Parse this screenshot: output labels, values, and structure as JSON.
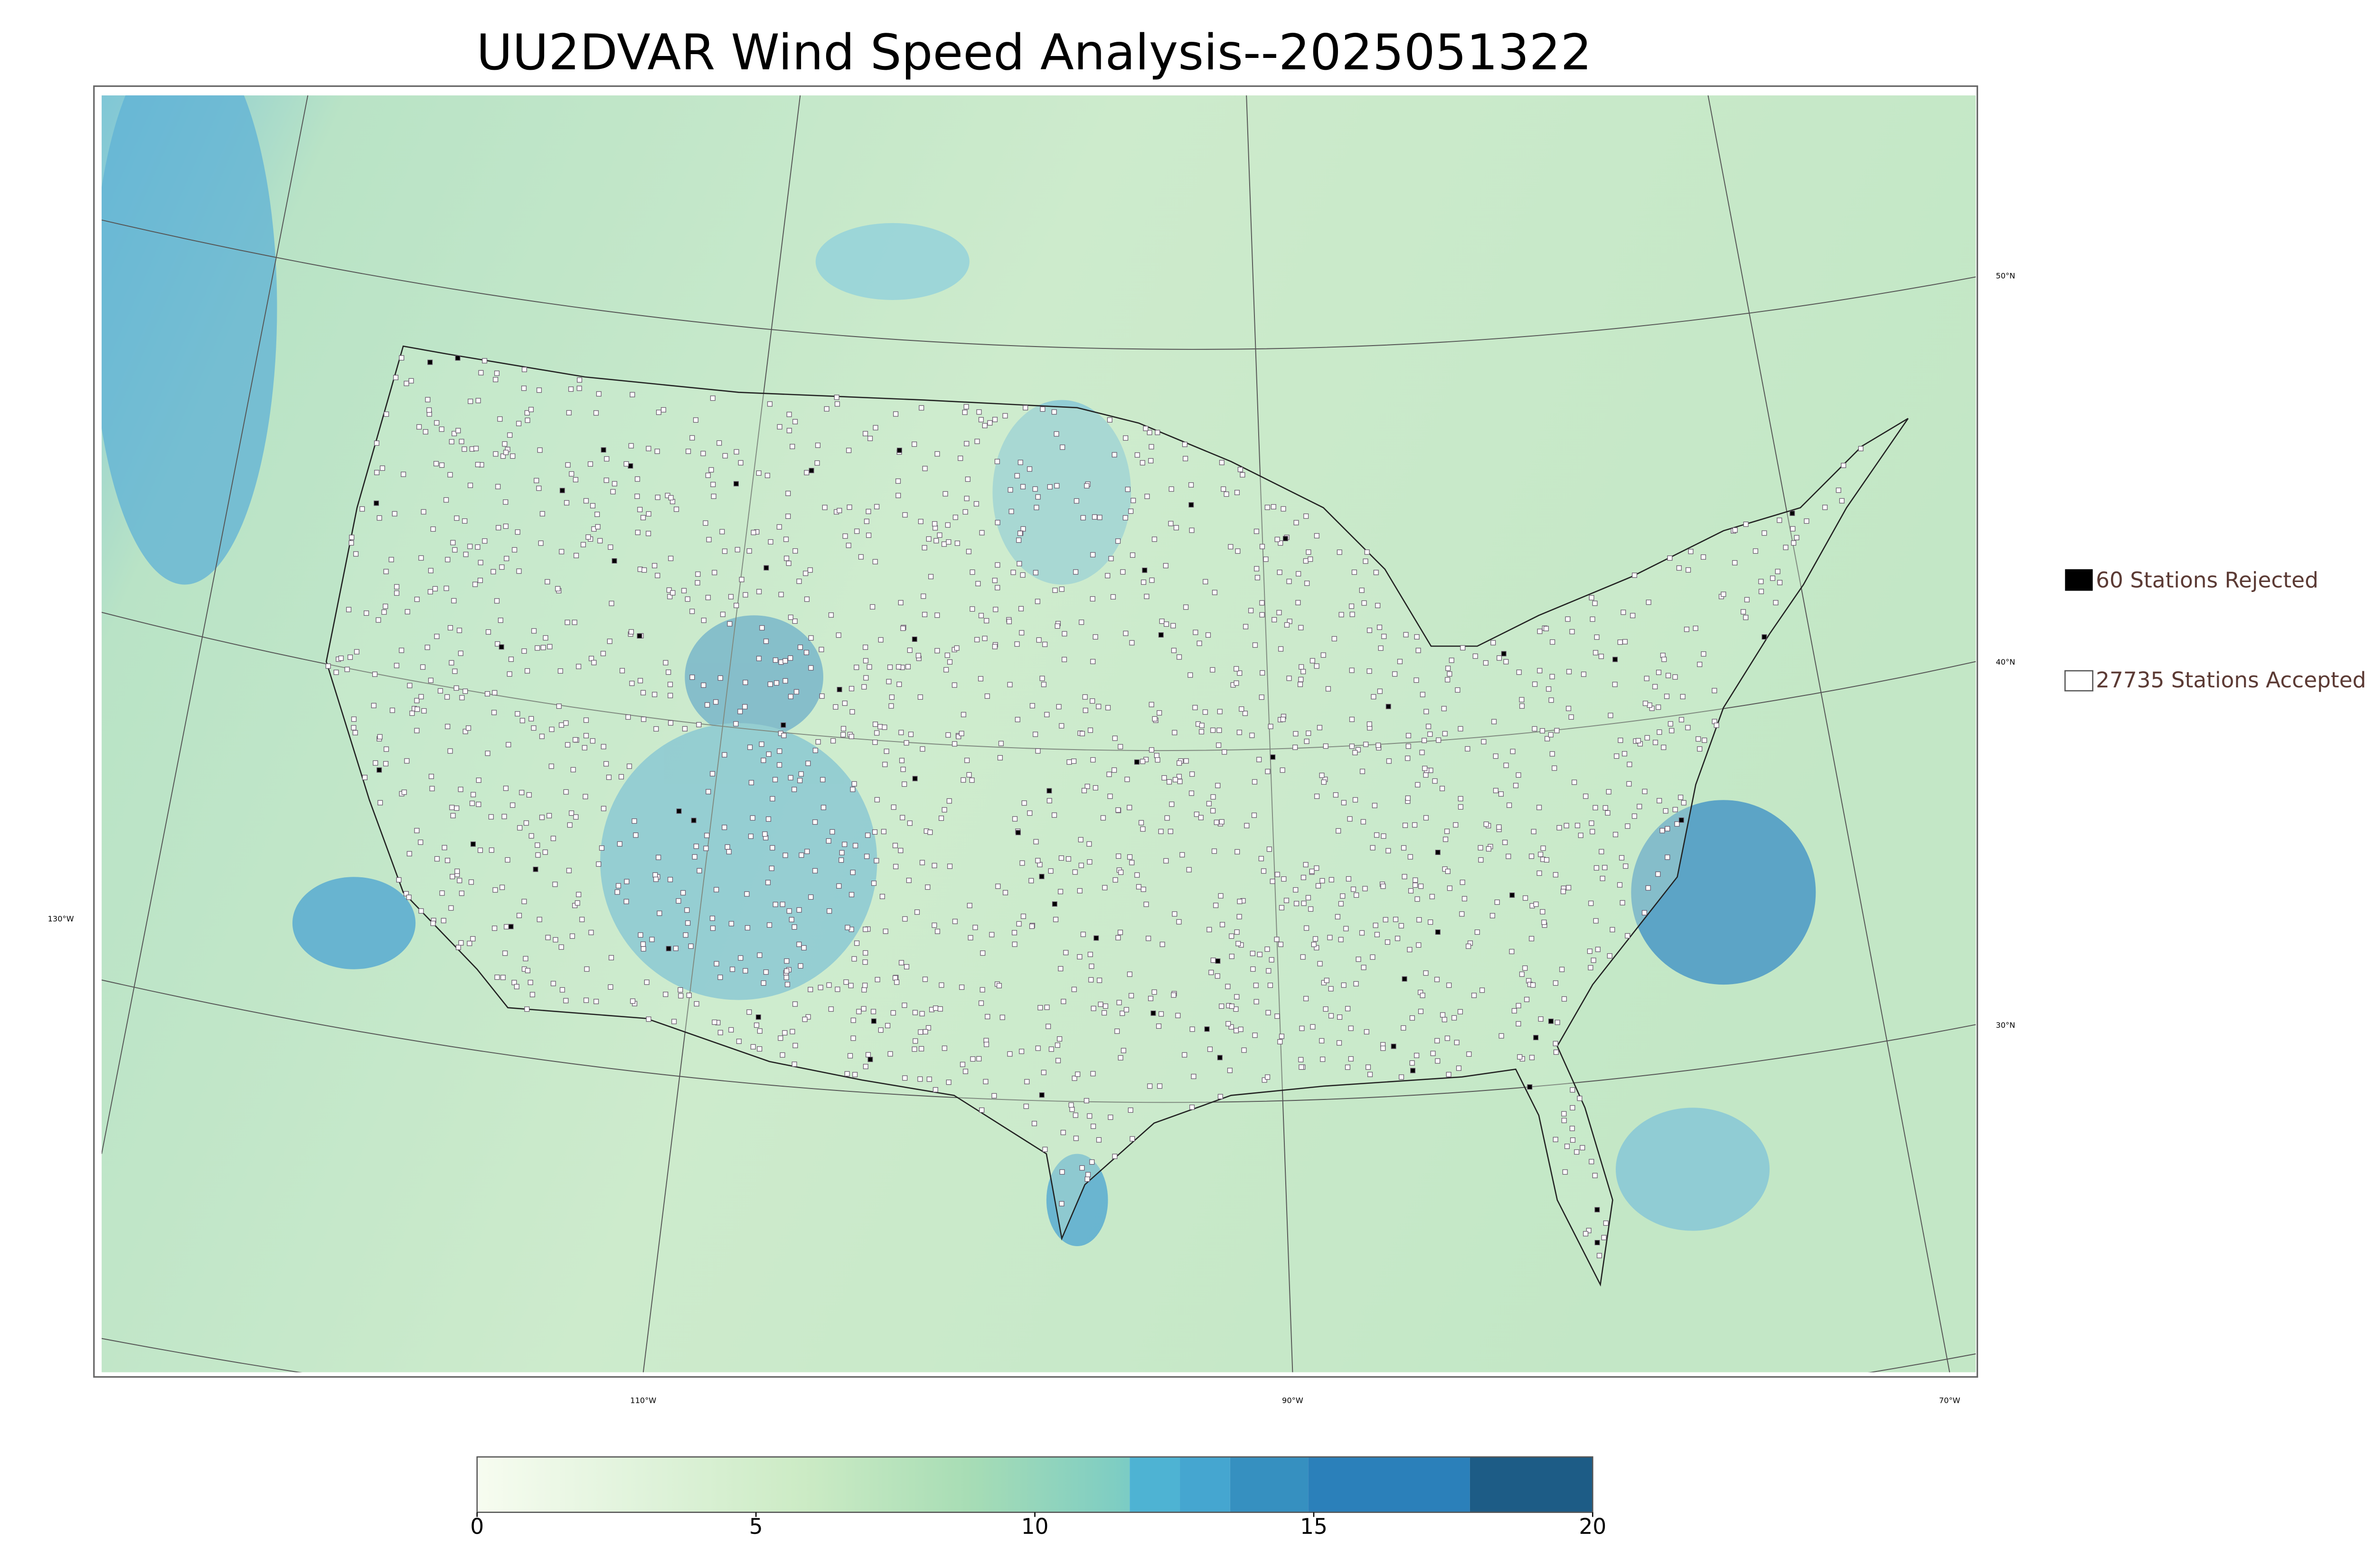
{
  "title": "UU2DVAR Wind Speed Analysis--2025051322",
  "legend": {
    "rejected": "60 Stations Rejected",
    "accepted": "27735 Stations Accepted"
  },
  "latitude_labels": [
    "50°N",
    "40°N",
    "30°N"
  ],
  "longitude_labels": [
    "130°W",
    "110°W",
    "90°W",
    "70°W"
  ],
  "colorbar": {
    "lim": [
      0,
      20
    ],
    "ticks": [
      0,
      5,
      10,
      15,
      20
    ],
    "levels": [
      0,
      11.7,
      12.6,
      13.5,
      14.9,
      17.8,
      20
    ],
    "gradient": [
      "#f7fcf0",
      "#e0f3db",
      "#ccebc5",
      "#a8ddb5",
      "#7bccc4"
    ],
    "colors": [
      "#4eb3d3",
      "#45a6d0",
      "#3690c0",
      "#2b80ba",
      "#1d5c86"
    ]
  }
}
